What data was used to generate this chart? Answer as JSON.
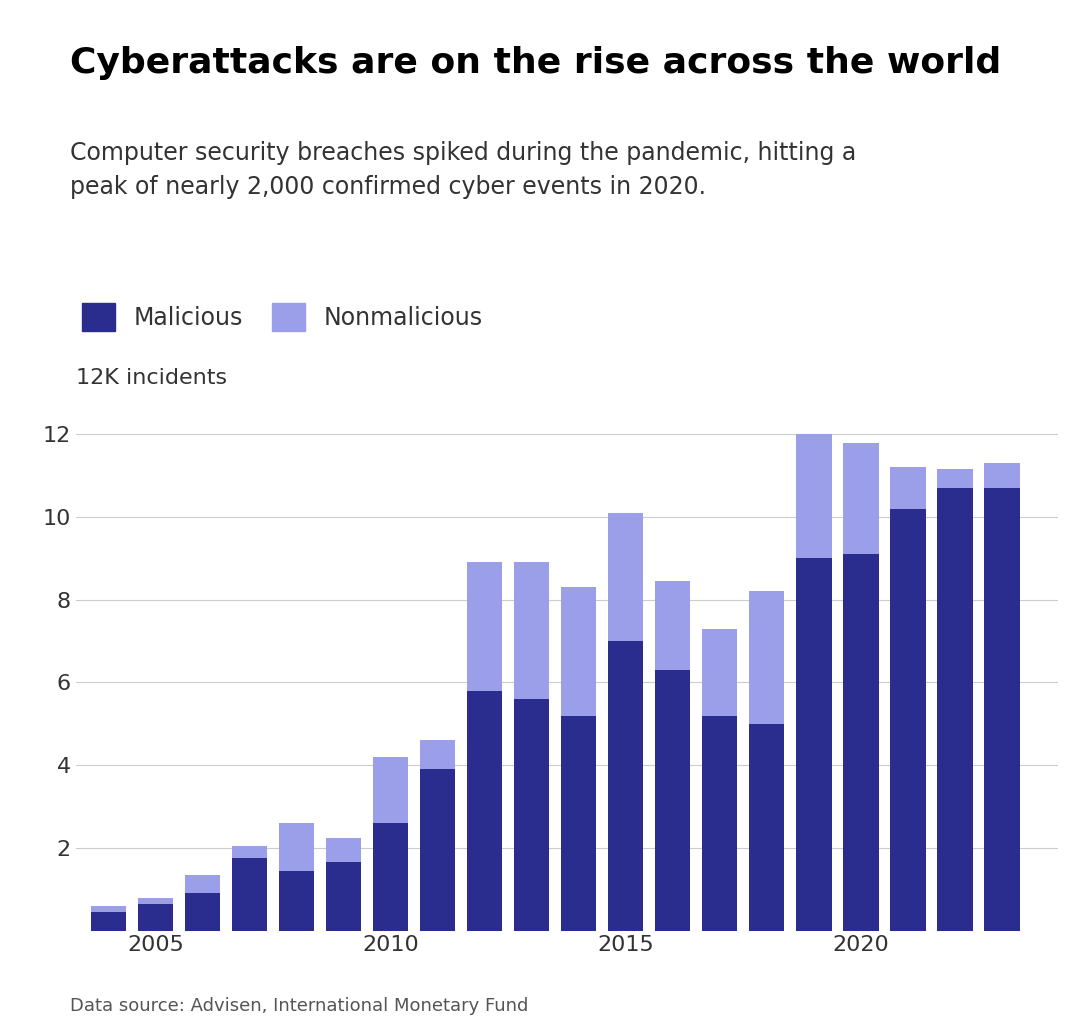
{
  "years": [
    2004,
    2005,
    2006,
    2007,
    2008,
    2009,
    2010,
    2011,
    2012,
    2013,
    2014,
    2015,
    2016,
    2017,
    2018,
    2019,
    2020,
    2021,
    2022,
    2023
  ],
  "malicious": [
    0.45,
    0.65,
    0.9,
    1.75,
    1.45,
    1.65,
    2.6,
    3.9,
    5.8,
    5.6,
    5.2,
    7.0,
    6.3,
    5.2,
    5.0,
    9.0,
    9.1,
    10.2,
    10.7,
    10.7
  ],
  "nonmalicious": [
    0.15,
    0.15,
    0.45,
    0.3,
    1.15,
    0.6,
    1.6,
    0.7,
    3.1,
    3.3,
    3.1,
    3.1,
    2.15,
    2.1,
    3.2,
    3.0,
    2.7,
    1.0,
    0.45,
    0.6
  ],
  "title": "Cyberattacks are on the rise across the world",
  "subtitle": "Computer security breaches spiked during the pandemic, hitting a\npeak of nearly 2,000 confirmed cyber events in 2020.",
  "ylabel": "12K incidents",
  "legend_malicious": "Malicious",
  "legend_nonmalicious": "Nonmalicious",
  "source": "Data source: Advisen, International Monetary Fund",
  "color_malicious": "#2B2D8E",
  "color_nonmalicious": "#9B9EE8",
  "ylim": [
    0,
    13
  ],
  "yticks": [
    2,
    4,
    6,
    8,
    10,
    12
  ],
  "background_color": "#ffffff",
  "title_fontsize": 26,
  "subtitle_fontsize": 17,
  "axis_fontsize": 16,
  "legend_fontsize": 17,
  "source_fontsize": 13
}
